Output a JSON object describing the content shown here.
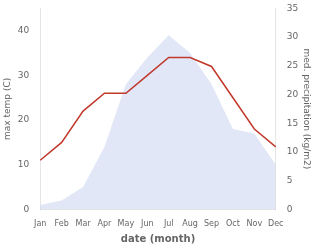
{
  "chart_data": {
    "type": "line",
    "categories": [
      "Jan",
      "Feb",
      "Mar",
      "Apr",
      "May",
      "Jun",
      "Jul",
      "Aug",
      "Sep",
      "Oct",
      "Nov",
      "Dec"
    ],
    "series": [
      {
        "type": "area",
        "color": "#c8d4f0",
        "values": [
          1,
          2,
          5,
          14,
          28,
          34,
          39,
          35,
          28,
          18,
          17,
          10
        ]
      },
      {
        "type": "line",
        "color": "#c0392b",
        "values": [
          11,
          15,
          22,
          26,
          26,
          30,
          34,
          34,
          32,
          25,
          18,
          14
        ]
      }
    ],
    "xlabel": "date (month)",
    "ylabel": "max temp (C)",
    "y2label": "med. precipitation (kg/m2)",
    "ylim": [
      0,
      45
    ],
    "yticks": [
      0,
      10,
      20,
      30,
      40
    ],
    "y2lim": [
      0,
      35
    ],
    "y2ticks": [
      0,
      5,
      10,
      15,
      20,
      25,
      30,
      35
    ],
    "grid": false
  }
}
